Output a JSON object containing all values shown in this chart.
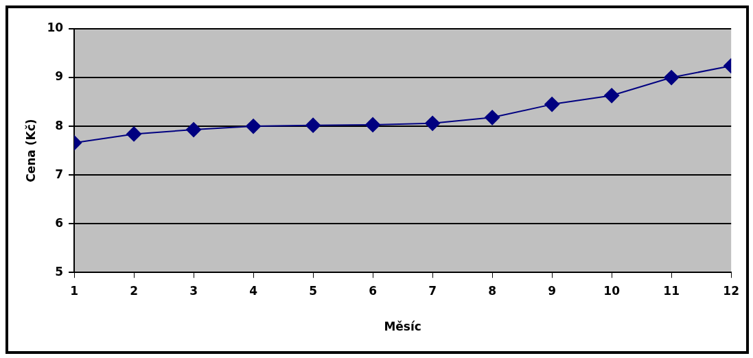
{
  "chart_data": {
    "type": "line",
    "xlabel": "Měsíc",
    "ylabel": "Cena (Kč)",
    "x": [
      1,
      2,
      3,
      4,
      5,
      6,
      7,
      8,
      9,
      10,
      11,
      12
    ],
    "series": [
      {
        "color": "#000080",
        "values": [
          7.66,
          7.84,
          7.93,
          8.0,
          8.02,
          8.03,
          8.06,
          8.18,
          8.45,
          8.63,
          9.0,
          9.24
        ]
      }
    ],
    "xlim": [
      1,
      12
    ],
    "xticks": [
      1,
      2,
      3,
      4,
      5,
      6,
      7,
      8,
      9,
      10,
      11,
      12
    ],
    "ylim": [
      5,
      10
    ],
    "yticks": [
      5,
      6,
      7,
      8,
      9,
      10
    ],
    "grid": "y",
    "legend": false,
    "marker": "diamond",
    "line_style": "solid"
  }
}
